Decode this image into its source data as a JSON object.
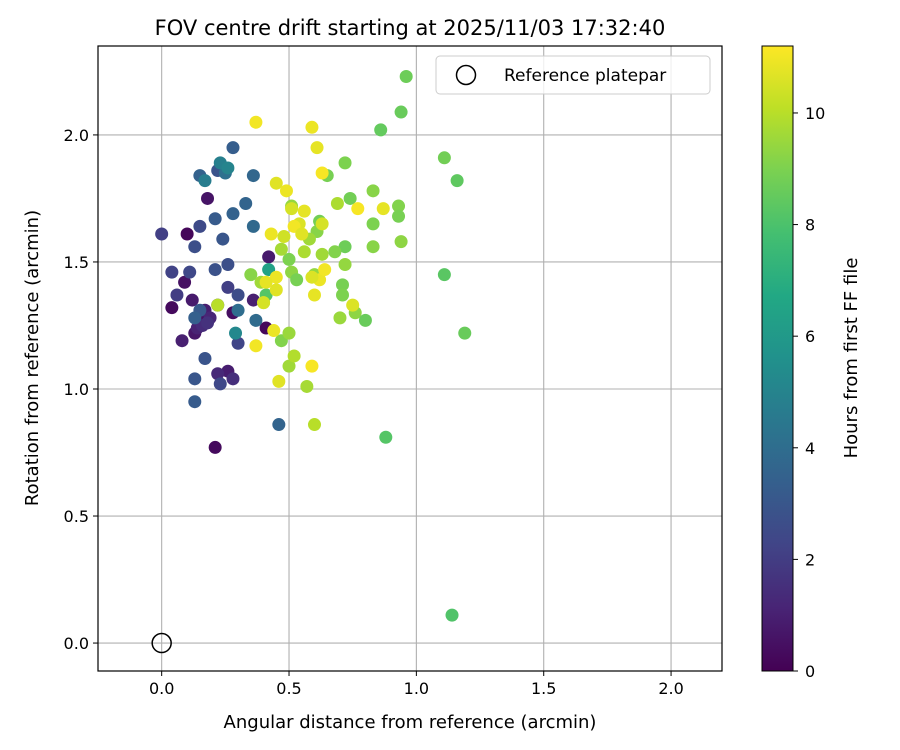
{
  "chart_data": {
    "type": "scatter",
    "title": "FOV centre drift starting at 2025/11/03 17:32:40",
    "xlabel": "Angular distance from reference (arcmin)",
    "ylabel": "Rotation from reference (arcmin)",
    "xlim": [
      -0.25,
      2.2
    ],
    "ylim": [
      -0.11,
      2.35
    ],
    "xticks": [
      0.0,
      0.5,
      1.0,
      1.5,
      2.0
    ],
    "xtick_labels": [
      "0.0",
      "0.5",
      "1.0",
      "1.5",
      "2.0"
    ],
    "yticks": [
      0.0,
      0.5,
      1.0,
      1.5,
      2.0
    ],
    "ytick_labels": [
      "0.0",
      "0.5",
      "1.0",
      "1.5",
      "2.0"
    ],
    "grid": true,
    "legend": {
      "position": "top-right",
      "entries": [
        "Reference platepar"
      ]
    },
    "reference_point": {
      "x": 0.0,
      "y": 0.0,
      "label": "Reference platepar"
    },
    "colorbar": {
      "label": "Hours from first FF file",
      "range": [
        0,
        11.2
      ],
      "ticks": [
        0,
        2,
        4,
        6,
        8,
        10
      ],
      "tick_labels": [
        "0",
        "2",
        "4",
        "6",
        "8",
        "10"
      ],
      "colormap": [
        "#440154",
        "#482475",
        "#414487",
        "#355f8d",
        "#2a788e",
        "#21918c",
        "#22a884",
        "#44bf70",
        "#7ad151",
        "#bddf26",
        "#fde725"
      ]
    },
    "points": [
      {
        "x": 0.21,
        "y": 0.77,
        "h": 0.3
      },
      {
        "x": 0.1,
        "y": 1.61,
        "h": 0.2
      },
      {
        "x": 0.18,
        "y": 1.75,
        "h": 0.6
      },
      {
        "x": 0.04,
        "y": 1.32,
        "h": 0.3
      },
      {
        "x": 0.09,
        "y": 1.42,
        "h": 0.5
      },
      {
        "x": 0.08,
        "y": 1.19,
        "h": 1.0
      },
      {
        "x": 0.12,
        "y": 1.35,
        "h": 0.8
      },
      {
        "x": 0.15,
        "y": 1.27,
        "h": 0.5
      },
      {
        "x": 0.17,
        "y": 1.31,
        "h": 0.9
      },
      {
        "x": 0.19,
        "y": 1.28,
        "h": 1.2
      },
      {
        "x": 0.13,
        "y": 1.22,
        "h": 0.7
      },
      {
        "x": 0.14,
        "y": 1.24,
        "h": 1.1
      },
      {
        "x": 0.16,
        "y": 1.25,
        "h": 1.4
      },
      {
        "x": 0.18,
        "y": 1.26,
        "h": 1.6
      },
      {
        "x": 0.28,
        "y": 1.3,
        "h": 0.4
      },
      {
        "x": 0.26,
        "y": 1.07,
        "h": 0.9
      },
      {
        "x": 0.22,
        "y": 1.06,
        "h": 1.3
      },
      {
        "x": 0.28,
        "y": 1.04,
        "h": 1.5
      },
      {
        "x": 0.41,
        "y": 1.24,
        "h": 0.2
      },
      {
        "x": 0.42,
        "y": 1.52,
        "h": 0.8
      },
      {
        "x": 0.36,
        "y": 1.35,
        "h": 1.0
      },
      {
        "x": 0.22,
        "y": 1.33,
        "h": 1.6
      },
      {
        "x": 0.0,
        "y": 1.61,
        "h": 2.1
      },
      {
        "x": 0.04,
        "y": 1.46,
        "h": 2.2
      },
      {
        "x": 0.06,
        "y": 1.37,
        "h": 2.0
      },
      {
        "x": 0.11,
        "y": 1.46,
        "h": 2.4
      },
      {
        "x": 0.15,
        "y": 1.64,
        "h": 2.5
      },
      {
        "x": 0.13,
        "y": 1.56,
        "h": 2.7
      },
      {
        "x": 0.21,
        "y": 1.47,
        "h": 2.8
      },
      {
        "x": 0.26,
        "y": 1.4,
        "h": 2.1
      },
      {
        "x": 0.3,
        "y": 1.37,
        "h": 2.6
      },
      {
        "x": 0.3,
        "y": 1.18,
        "h": 2.3
      },
      {
        "x": 0.23,
        "y": 1.02,
        "h": 2.4
      },
      {
        "x": 0.17,
        "y": 1.12,
        "h": 2.9
      },
      {
        "x": 0.13,
        "y": 1.04,
        "h": 3.0
      },
      {
        "x": 0.13,
        "y": 0.95,
        "h": 3.2
      },
      {
        "x": 0.15,
        "y": 1.31,
        "h": 3.1
      },
      {
        "x": 0.13,
        "y": 1.28,
        "h": 3.4
      },
      {
        "x": 0.24,
        "y": 1.59,
        "h": 3.0
      },
      {
        "x": 0.26,
        "y": 1.49,
        "h": 2.7
      },
      {
        "x": 0.21,
        "y": 1.67,
        "h": 3.2
      },
      {
        "x": 0.28,
        "y": 1.69,
        "h": 3.5
      },
      {
        "x": 0.33,
        "y": 1.73,
        "h": 3.6
      },
      {
        "x": 0.36,
        "y": 1.64,
        "h": 3.8
      },
      {
        "x": 0.37,
        "y": 1.27,
        "h": 3.9
      },
      {
        "x": 0.3,
        "y": 1.31,
        "h": 4.0
      },
      {
        "x": 0.46,
        "y": 0.86,
        "h": 3.6
      },
      {
        "x": 0.28,
        "y": 1.95,
        "h": 3.3
      },
      {
        "x": 0.22,
        "y": 1.86,
        "h": 2.9
      },
      {
        "x": 0.15,
        "y": 1.84,
        "h": 3.5
      },
      {
        "x": 0.25,
        "y": 1.85,
        "h": 4.1
      },
      {
        "x": 0.36,
        "y": 1.84,
        "h": 3.7
      },
      {
        "x": 0.17,
        "y": 1.82,
        "h": 4.7
      },
      {
        "x": 0.23,
        "y": 1.89,
        "h": 4.8
      },
      {
        "x": 0.26,
        "y": 1.87,
        "h": 5.0
      },
      {
        "x": 0.29,
        "y": 1.22,
        "h": 5.2
      },
      {
        "x": 0.42,
        "y": 1.47,
        "h": 6.4
      },
      {
        "x": 0.41,
        "y": 1.37,
        "h": 8.2
      },
      {
        "x": 0.96,
        "y": 2.23,
        "h": 8.7
      },
      {
        "x": 0.94,
        "y": 2.09,
        "h": 8.6
      },
      {
        "x": 0.86,
        "y": 2.02,
        "h": 8.5
      },
      {
        "x": 1.11,
        "y": 1.91,
        "h": 8.8
      },
      {
        "x": 1.16,
        "y": 1.82,
        "h": 8.4
      },
      {
        "x": 1.11,
        "y": 1.45,
        "h": 8.3
      },
      {
        "x": 1.19,
        "y": 1.22,
        "h": 8.6
      },
      {
        "x": 0.88,
        "y": 0.81,
        "h": 8.2
      },
      {
        "x": 1.14,
        "y": 0.11,
        "h": 8.1
      },
      {
        "x": 0.72,
        "y": 1.89,
        "h": 9.0
      },
      {
        "x": 0.65,
        "y": 1.84,
        "h": 8.9
      },
      {
        "x": 0.74,
        "y": 1.75,
        "h": 8.8
      },
      {
        "x": 0.83,
        "y": 1.78,
        "h": 9.2
      },
      {
        "x": 0.93,
        "y": 1.72,
        "h": 9.1
      },
      {
        "x": 0.93,
        "y": 1.68,
        "h": 8.9
      },
      {
        "x": 0.94,
        "y": 1.58,
        "h": 9.3
      },
      {
        "x": 0.83,
        "y": 1.65,
        "h": 9.0
      },
      {
        "x": 0.83,
        "y": 1.56,
        "h": 9.2
      },
      {
        "x": 0.72,
        "y": 1.56,
        "h": 8.7
      },
      {
        "x": 0.68,
        "y": 1.54,
        "h": 9.1
      },
      {
        "x": 0.72,
        "y": 1.49,
        "h": 9.4
      },
      {
        "x": 0.71,
        "y": 1.41,
        "h": 8.9
      },
      {
        "x": 0.71,
        "y": 1.37,
        "h": 9.0
      },
      {
        "x": 0.76,
        "y": 1.3,
        "h": 9.3
      },
      {
        "x": 0.8,
        "y": 1.27,
        "h": 8.6
      },
      {
        "x": 0.7,
        "y": 1.28,
        "h": 9.5
      },
      {
        "x": 0.62,
        "y": 1.66,
        "h": 8.8
      },
      {
        "x": 0.61,
        "y": 1.62,
        "h": 9.2
      },
      {
        "x": 0.58,
        "y": 1.59,
        "h": 9.6
      },
      {
        "x": 0.56,
        "y": 1.54,
        "h": 9.8
      },
      {
        "x": 0.51,
        "y": 1.72,
        "h": 9.4
      },
      {
        "x": 0.5,
        "y": 1.51,
        "h": 9.0
      },
      {
        "x": 0.51,
        "y": 1.46,
        "h": 9.3
      },
      {
        "x": 0.53,
        "y": 1.43,
        "h": 8.9
      },
      {
        "x": 0.47,
        "y": 1.55,
        "h": 9.7
      },
      {
        "x": 0.47,
        "y": 1.19,
        "h": 9.1
      },
      {
        "x": 0.5,
        "y": 1.22,
        "h": 9.5
      },
      {
        "x": 0.5,
        "y": 1.09,
        "h": 9.6
      },
      {
        "x": 0.52,
        "y": 1.13,
        "h": 9.9
      },
      {
        "x": 0.57,
        "y": 1.01,
        "h": 9.7
      },
      {
        "x": 0.6,
        "y": 0.86,
        "h": 10.0
      },
      {
        "x": 0.35,
        "y": 1.45,
        "h": 9.2
      },
      {
        "x": 0.39,
        "y": 1.42,
        "h": 9.6
      },
      {
        "x": 0.4,
        "y": 1.34,
        "h": 9.8
      },
      {
        "x": 0.6,
        "y": 1.45,
        "h": 9.4
      },
      {
        "x": 0.63,
        "y": 1.53,
        "h": 9.6
      },
      {
        "x": 0.69,
        "y": 1.73,
        "h": 9.8
      },
      {
        "x": 0.22,
        "y": 1.33,
        "h": 10.0
      },
      {
        "x": 0.37,
        "y": 2.05,
        "h": 11.0
      },
      {
        "x": 0.59,
        "y": 2.03,
        "h": 10.9
      },
      {
        "x": 0.61,
        "y": 1.95,
        "h": 10.8
      },
      {
        "x": 0.63,
        "y": 1.85,
        "h": 11.1
      },
      {
        "x": 0.45,
        "y": 1.81,
        "h": 10.7
      },
      {
        "x": 0.49,
        "y": 1.78,
        "h": 10.9
      },
      {
        "x": 0.51,
        "y": 1.71,
        "h": 10.5
      },
      {
        "x": 0.56,
        "y": 1.7,
        "h": 10.8
      },
      {
        "x": 0.54,
        "y": 1.65,
        "h": 10.6
      },
      {
        "x": 0.52,
        "y": 1.64,
        "h": 11.0
      },
      {
        "x": 0.48,
        "y": 1.6,
        "h": 10.4
      },
      {
        "x": 0.43,
        "y": 1.61,
        "h": 10.9
      },
      {
        "x": 0.55,
        "y": 1.61,
        "h": 10.7
      },
      {
        "x": 0.77,
        "y": 1.71,
        "h": 11.1
      },
      {
        "x": 0.87,
        "y": 1.71,
        "h": 10.8
      },
      {
        "x": 0.63,
        "y": 1.65,
        "h": 10.5
      },
      {
        "x": 0.62,
        "y": 1.43,
        "h": 10.9
      },
      {
        "x": 0.64,
        "y": 1.47,
        "h": 11.0
      },
      {
        "x": 0.59,
        "y": 1.44,
        "h": 10.6
      },
      {
        "x": 0.6,
        "y": 1.37,
        "h": 10.8
      },
      {
        "x": 0.45,
        "y": 1.39,
        "h": 10.7
      },
      {
        "x": 0.45,
        "y": 1.44,
        "h": 10.9
      },
      {
        "x": 0.4,
        "y": 1.34,
        "h": 10.5
      },
      {
        "x": 0.41,
        "y": 1.42,
        "h": 10.8
      },
      {
        "x": 0.37,
        "y": 1.17,
        "h": 11.0
      },
      {
        "x": 0.44,
        "y": 1.23,
        "h": 10.9
      },
      {
        "x": 0.46,
        "y": 1.03,
        "h": 10.7
      },
      {
        "x": 0.59,
        "y": 1.09,
        "h": 11.1
      },
      {
        "x": 0.75,
        "y": 1.33,
        "h": 10.6
      }
    ]
  }
}
